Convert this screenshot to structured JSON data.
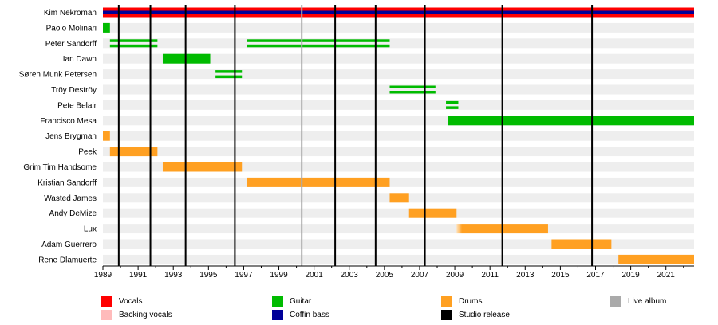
{
  "chart_data": {
    "type": "timeline",
    "title": "",
    "xlabel": "",
    "ylabel": "",
    "xlim": [
      1989.0,
      2022.6
    ],
    "x_ticks": [
      "1989",
      "1991",
      "1993",
      "1995",
      "1997",
      "1999",
      "2001",
      "2003",
      "2005",
      "2007",
      "2009",
      "2011",
      "2013",
      "2015",
      "2017",
      "2019",
      "2021"
    ],
    "members": [
      "Kim Nekroman",
      "Paolo Molinari",
      "Peter Sandorff",
      "Ian Dawn",
      "Søren Munk Petersen",
      "Tröy Deströy",
      "Pete Belair",
      "Francisco Mesa",
      "Jens Brygman",
      "Peek",
      "Grim Tim Handsome",
      "Kristian Sandorff",
      "Wasted James",
      "Andy DeMize",
      "Lux",
      "Adam Guerrero",
      "Rene Dlamuerte"
    ],
    "bars": [
      {
        "member": "Kim Nekroman",
        "role": "Vocals",
        "start": 1989.0,
        "end": 2022.6
      },
      {
        "member": "Kim Nekroman",
        "role": "Coffin bass",
        "start": 1989.0,
        "end": 2022.6
      },
      {
        "member": "Paolo Molinari",
        "role": "Guitar",
        "start": 1989.0,
        "end": 1989.4
      },
      {
        "member": "Peter Sandorff",
        "role": "Guitar",
        "start": 1989.4,
        "end": 1992.1,
        "style": "double"
      },
      {
        "member": "Peter Sandorff",
        "role": "Guitar",
        "start": 1997.2,
        "end": 2005.3,
        "style": "double"
      },
      {
        "member": "Ian Dawn",
        "role": "Guitar",
        "start": 1992.4,
        "end": 1995.1
      },
      {
        "member": "Søren Munk Petersen",
        "role": "Guitar",
        "start": 1995.4,
        "end": 1996.9,
        "style": "double"
      },
      {
        "member": "Tröy Deströy",
        "role": "Guitar",
        "start": 2005.3,
        "end": 2007.9,
        "style": "double"
      },
      {
        "member": "Pete Belair",
        "role": "Guitar",
        "start": 2008.5,
        "end": 2009.2,
        "style": "double"
      },
      {
        "member": "Francisco Mesa",
        "role": "Guitar",
        "start": 2008.6,
        "end": 2022.6
      },
      {
        "member": "Jens Brygman",
        "role": "Drums",
        "start": 1989.0,
        "end": 1989.4
      },
      {
        "member": "Peek",
        "role": "Drums",
        "start": 1989.4,
        "end": 1992.1
      },
      {
        "member": "Grim Tim Handsome",
        "role": "Drums",
        "start": 1992.4,
        "end": 1996.9
      },
      {
        "member": "Kristian Sandorff",
        "role": "Drums",
        "start": 1997.2,
        "end": 2005.3
      },
      {
        "member": "Wasted James",
        "role": "Drums",
        "start": 2005.3,
        "end": 2006.4
      },
      {
        "member": "Andy DeMize",
        "role": "Drums",
        "start": 2006.4,
        "end": 2009.1
      },
      {
        "member": "Lux",
        "role": "Drums",
        "start": 2009.1,
        "end": 2014.3,
        "fade": true
      },
      {
        "member": "Adam Guerrero",
        "role": "Drums",
        "start": 2014.5,
        "end": 2017.9
      },
      {
        "member": "Rene Dlamuerte",
        "role": "Drums",
        "start": 2018.3,
        "end": 2022.6
      }
    ],
    "studio_releases": [
      1989.9,
      1991.7,
      1993.7,
      1996.5,
      2002.2,
      2004.5,
      2007.3,
      2011.7,
      2016.8
    ],
    "live_albums": [
      2000.3
    ],
    "colors": {
      "Vocals": "#ff0000",
      "Backing vocals": "#ffbbbb",
      "Guitar": "#00bb00",
      "Coffin bass": "#000099",
      "Drums": "#ffa022",
      "Studio release": "#000000",
      "Live album": "#aaaaaa",
      "row_stripe": "#eeeeee"
    }
  },
  "legend": {
    "items": [
      {
        "label": "Vocals",
        "color": "#ff0000"
      },
      {
        "label": "Backing vocals",
        "color": "#ffbbbb"
      },
      {
        "label": "Guitar",
        "color": "#00bb00"
      },
      {
        "label": "Coffin bass",
        "color": "#000099"
      },
      {
        "label": "Drums",
        "color": "#ffa022"
      },
      {
        "label": "Studio release",
        "color": "#000000"
      },
      {
        "label": "Live album",
        "color": "#aaaaaa"
      }
    ]
  }
}
